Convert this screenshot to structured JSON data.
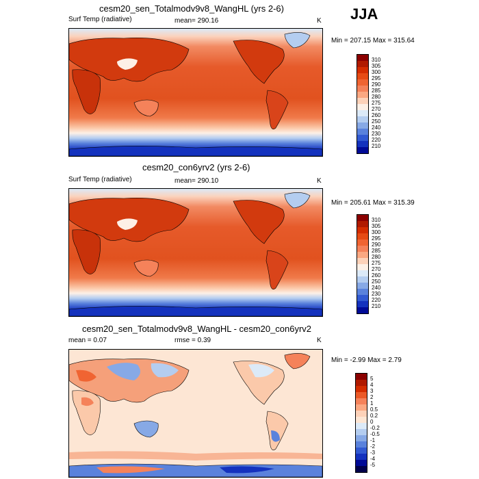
{
  "season": "JJA",
  "panels": [
    {
      "title": "cesm20_sen_Totalmodv9v8_WangHL (yrs 2-6)",
      "left_label": "Surf Temp (radiative)",
      "center_label": "mean= 290.16",
      "units": "K",
      "minmax": "Min = 207.15 Max = 315.64",
      "field": "Surface radiative temperature map"
    },
    {
      "title": "cesm20_con6yrv2 (yrs 2-6)",
      "left_label": "Surf Temp (radiative)",
      "center_label": "mean= 290.10",
      "units": "K",
      "minmax": "Min = 205.61 Max = 315.39",
      "field": "Surface radiative temperature map"
    },
    {
      "title": "cesm20_sen_Totalmodv9v8_WangHL - cesm20_con6yrv2",
      "left_label": "mean =   0.07",
      "center_label": "rmse =   0.39",
      "units": "K",
      "minmax": "Min =  -2.99 Max =   2.79",
      "field": "Difference map"
    }
  ],
  "colorbar_temp": {
    "labels": [
      "310",
      "305",
      "300",
      "295",
      "290",
      "285",
      "280",
      "275",
      "270",
      "260",
      "250",
      "240",
      "230",
      "220",
      "210"
    ],
    "colors": [
      "#8b0000",
      "#b01a00",
      "#d42d00",
      "#e64b14",
      "#f06432",
      "#f5825a",
      "#fba882",
      "#fdd2b9",
      "#fdf0e6",
      "#dceaf8",
      "#b4cdf0",
      "#87a9e6",
      "#5a82dc",
      "#325ad2",
      "#1432be",
      "#000a96"
    ]
  },
  "colorbar_diff": {
    "labels": [
      "5",
      "4",
      "3",
      "2",
      "1",
      "0.5",
      "0.2",
      "0",
      "-0.2",
      "-0.5",
      "-1",
      "-2",
      "-3",
      "-4",
      "-5"
    ],
    "colors": [
      "#8b0000",
      "#b01a00",
      "#d42d00",
      "#eb5a28",
      "#f5825a",
      "#fba882",
      "#fdd2b9",
      "#fde6d4",
      "#dceaf8",
      "#b4cdf0",
      "#87a9e6",
      "#5a82dc",
      "#325ad2",
      "#1432be",
      "#000a96",
      "#00004b"
    ]
  }
}
